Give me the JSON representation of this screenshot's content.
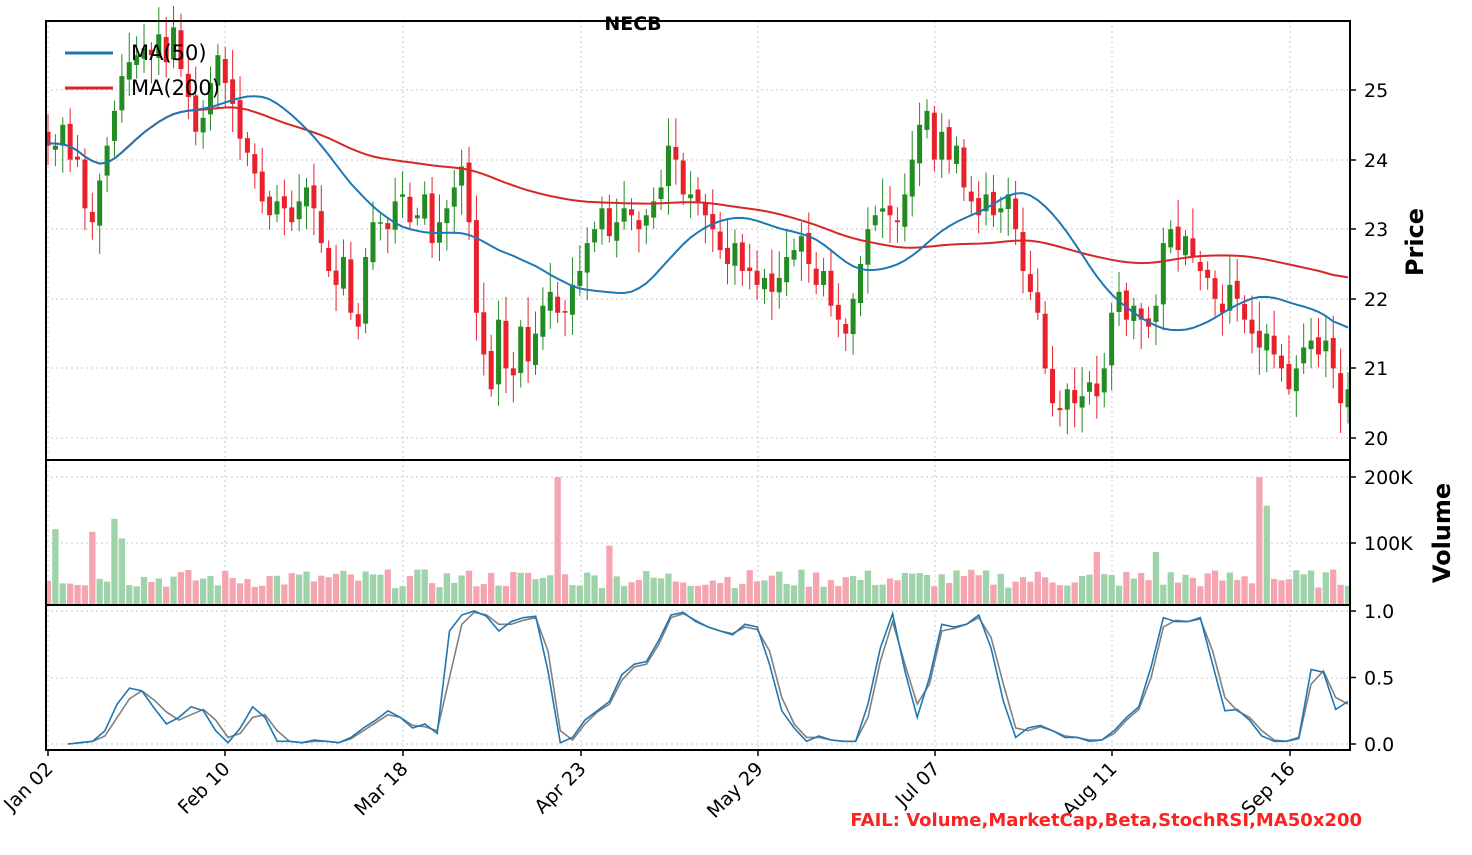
{
  "chart_data": {
    "type": "candlestick",
    "title": "NECB",
    "colors": {
      "up": "#228b22",
      "down": "#e8212b",
      "ma50": "#1f77b4",
      "ma200": "#d62728",
      "vol_up": "#9fd3a9",
      "vol_down": "#f5a5b0",
      "stoch_k": "#1f77b4",
      "stoch_d": "#808080",
      "fail": "#ff2020"
    },
    "x_ticks": [
      "Jan 02",
      "Feb 10",
      "Mar 18",
      "Apr 23",
      "May 29",
      "Jul 07",
      "Aug 11",
      "Sep 16"
    ],
    "price_panel": {
      "ylabel": "Price",
      "ylim": [
        19.8,
        26.0
      ],
      "yticks": [
        "20",
        "21",
        "22",
        "23",
        "24",
        "25"
      ],
      "legend": [
        {
          "name": "MA(50)",
          "color": "#1f77b4"
        },
        {
          "name": "MA(200)",
          "color": "#d62728"
        }
      ],
      "legend_position": "top-left",
      "close": [
        24.2,
        24.2,
        24.5,
        24.0,
        24.0,
        23.3,
        23.1,
        23.7,
        24.2,
        24.7,
        25.2,
        25.4,
        25.5,
        25.6,
        25.5,
        25.8,
        25.4,
        25.9,
        25.3,
        24.9,
        24.4,
        24.6,
        25.1,
        25.5,
        25.1,
        24.8,
        24.3,
        24.1,
        23.8,
        23.4,
        23.2,
        23.4,
        23.3,
        23.1,
        23.4,
        23.6,
        23.3,
        22.8,
        22.4,
        22.2,
        22.6,
        21.8,
        21.6,
        22.6,
        23.1,
        23.1,
        23.0,
        23.4,
        23.5,
        23.1,
        23.2,
        23.5,
        22.8,
        23.1,
        23.3,
        23.6,
        23.9,
        23.1,
        21.8,
        21.2,
        20.7,
        21.7,
        21.0,
        20.9,
        21.6,
        21.1,
        21.5,
        21.9,
        22.1,
        21.8,
        21.8,
        22.2,
        22.4,
        22.8,
        23.0,
        23.3,
        22.9,
        23.1,
        23.3,
        23.2,
        23.0,
        23.2,
        23.4,
        23.6,
        24.2,
        24.0,
        23.5,
        23.5,
        23.4,
        23.2,
        23.0,
        22.7,
        22.5,
        22.8,
        22.4,
        22.4,
        22.2,
        22.3,
        22.1,
        22.3,
        22.6,
        22.7,
        22.9,
        22.5,
        22.2,
        22.4,
        21.9,
        21.7,
        21.5,
        22.0,
        22.5,
        23.0,
        23.2,
        23.3,
        23.2,
        23.1,
        23.5,
        24.0,
        24.5,
        24.7,
        24.0,
        24.4,
        24.0,
        24.2,
        23.6,
        23.4,
        23.2,
        23.5,
        23.2,
        23.3,
        23.5,
        23.0,
        22.4,
        22.1,
        21.8,
        21.0,
        20.5,
        20.4,
        20.7,
        20.5,
        20.6,
        20.8,
        20.6,
        21.0,
        21.8,
        22.1,
        21.7,
        21.9,
        21.7,
        21.6,
        21.9,
        22.8,
        23.0,
        22.7,
        22.9,
        22.6,
        22.4,
        22.3,
        22.0,
        21.8,
        22.2,
        22.0,
        21.7,
        21.5,
        21.3,
        21.5,
        21.2,
        21.0,
        20.7,
        21.0,
        21.3,
        21.4,
        21.2,
        21.4,
        21.0,
        20.5,
        20.7
      ]
    },
    "volume_panel": {
      "ylabel": "Volume",
      "yticks": [
        "100K",
        "200K"
      ],
      "ylim": [
        0,
        220000
      ]
    },
    "stoch_panel": {
      "ylim": [
        -0.03,
        1.02
      ],
      "yticks": [
        "0.0",
        "0.5",
        "1.0"
      ],
      "k": [
        0.0,
        0.01,
        0.02,
        0.1,
        0.3,
        0.42,
        0.4,
        0.27,
        0.15,
        0.2,
        0.28,
        0.25,
        0.1,
        0.01,
        0.12,
        0.28,
        0.2,
        0.02,
        0.02,
        0.01,
        0.03,
        0.02,
        0.01,
        0.05,
        0.12,
        0.18,
        0.25,
        0.2,
        0.12,
        0.15,
        0.08,
        0.85,
        0.97,
        1.0,
        0.96,
        0.85,
        0.92,
        0.95,
        0.96,
        0.55,
        0.01,
        0.05,
        0.18,
        0.25,
        0.32,
        0.52,
        0.6,
        0.62,
        0.78,
        0.97,
        0.99,
        0.92,
        0.88,
        0.85,
        0.82,
        0.9,
        0.88,
        0.6,
        0.25,
        0.12,
        0.02,
        0.06,
        0.03,
        0.02,
        0.02,
        0.3,
        0.72,
        0.98,
        0.55,
        0.2,
        0.5,
        0.9,
        0.88,
        0.9,
        0.97,
        0.72,
        0.32,
        0.05,
        0.12,
        0.14,
        0.1,
        0.05,
        0.05,
        0.02,
        0.03,
        0.1,
        0.2,
        0.28,
        0.58,
        0.95,
        0.92,
        0.92,
        0.95,
        0.6,
        0.25,
        0.26,
        0.18,
        0.06,
        0.02,
        0.02,
        0.05,
        0.56,
        0.54,
        0.26,
        0.32
      ],
      "d": [
        0.0,
        0.01,
        0.02,
        0.06,
        0.2,
        0.34,
        0.4,
        0.33,
        0.24,
        0.18,
        0.22,
        0.26,
        0.18,
        0.05,
        0.08,
        0.2,
        0.22,
        0.1,
        0.02,
        0.01,
        0.02,
        0.02,
        0.01,
        0.04,
        0.1,
        0.16,
        0.22,
        0.2,
        0.14,
        0.13,
        0.1,
        0.5,
        0.9,
        0.99,
        0.97,
        0.9,
        0.9,
        0.93,
        0.95,
        0.7,
        0.1,
        0.03,
        0.15,
        0.24,
        0.3,
        0.48,
        0.58,
        0.6,
        0.75,
        0.95,
        0.98,
        0.93,
        0.88,
        0.85,
        0.83,
        0.88,
        0.86,
        0.7,
        0.35,
        0.15,
        0.05,
        0.05,
        0.03,
        0.02,
        0.02,
        0.2,
        0.62,
        0.92,
        0.6,
        0.3,
        0.45,
        0.85,
        0.87,
        0.9,
        0.95,
        0.8,
        0.45,
        0.12,
        0.1,
        0.13,
        0.1,
        0.06,
        0.05,
        0.03,
        0.03,
        0.08,
        0.18,
        0.26,
        0.5,
        0.88,
        0.93,
        0.92,
        0.94,
        0.7,
        0.35,
        0.25,
        0.2,
        0.1,
        0.03,
        0.02,
        0.04,
        0.45,
        0.55,
        0.35,
        0.3
      ]
    },
    "footer_text": "FAIL: Volume,MarketCap,Beta,StochRSI,MA50x200"
  }
}
